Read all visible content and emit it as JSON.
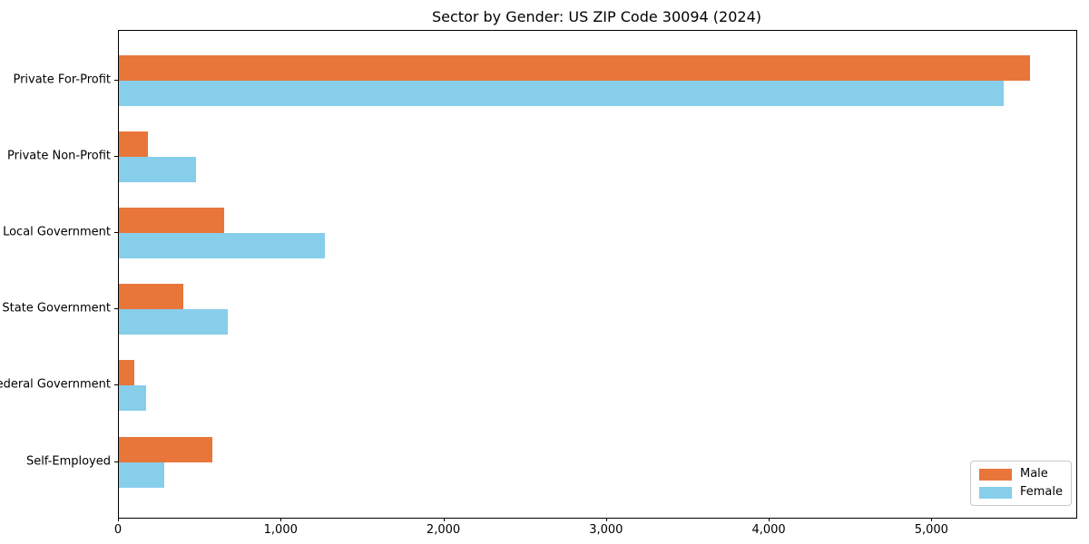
{
  "chart_data": {
    "type": "bar",
    "orientation": "horizontal",
    "title": "Sector by Gender: US ZIP Code 30094 (2024)",
    "categories": [
      "Private For-Profit",
      "Private Non-Profit",
      "Local Government",
      "State Government",
      "Federal Government",
      "Self-Employed"
    ],
    "series": [
      {
        "name": "Male",
        "color": "#E8763B",
        "values": [
          5600,
          180,
          645,
          395,
          95,
          575
        ]
      },
      {
        "name": "Female",
        "color": "#87CEEB",
        "values": [
          5440,
          475,
          1265,
          670,
          165,
          280
        ]
      }
    ],
    "xlabel": "",
    "ylabel": "",
    "xlim": [
      0,
      5885
    ],
    "xticks": [
      0,
      1000,
      2000,
      3000,
      4000,
      5000
    ],
    "xtick_labels": [
      "0",
      "1,000",
      "2,000",
      "3,000",
      "4,000",
      "5,000"
    ],
    "grid": false,
    "legend": {
      "position": "lower-right",
      "entries": [
        "Male",
        "Female"
      ]
    }
  }
}
